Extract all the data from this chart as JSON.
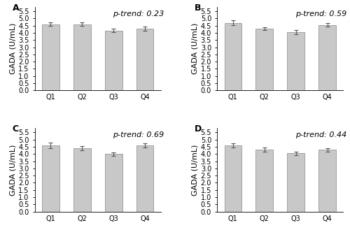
{
  "panels": [
    {
      "label": "A",
      "p_trend": "p-trend: 0.23",
      "categories": [
        "Q1",
        "Q2",
        "Q3",
        "Q4"
      ],
      "values": [
        4.6,
        4.6,
        4.15,
        4.3
      ],
      "errors": [
        0.12,
        0.12,
        0.12,
        0.15
      ]
    },
    {
      "label": "B",
      "p_trend": "p-trend: 0.59",
      "categories": [
        "Q1",
        "Q2",
        "Q3",
        "Q4"
      ],
      "values": [
        4.7,
        4.3,
        4.05,
        4.55
      ],
      "errors": [
        0.15,
        0.1,
        0.13,
        0.12
      ]
    },
    {
      "label": "C",
      "p_trend": "p-trend: 0.69",
      "categories": [
        "Q1",
        "Q2",
        "Q3",
        "Q4"
      ],
      "values": [
        4.6,
        4.4,
        4.0,
        4.6
      ],
      "errors": [
        0.18,
        0.15,
        0.12,
        0.15
      ]
    },
    {
      "label": "D",
      "p_trend": "p-trend: 0.44",
      "categories": [
        "Q1",
        "Q2",
        "Q3",
        "Q4"
      ],
      "values": [
        4.6,
        4.3,
        4.05,
        4.3
      ],
      "errors": [
        0.15,
        0.13,
        0.12,
        0.12
      ]
    }
  ],
  "bar_color": "#c8c8c8",
  "bar_edgecolor": "#888888",
  "error_color": "#555555",
  "ylabel": "GADA (U/mL)",
  "ylim": [
    0.0,
    5.8
  ],
  "yticks": [
    0.0,
    0.5,
    1.0,
    1.5,
    2.0,
    2.5,
    3.0,
    3.5,
    4.0,
    4.5,
    5.0,
    5.5
  ],
  "bar_width": 0.55,
  "label_fontsize": 9,
  "ptrend_fontsize": 8,
  "tick_fontsize": 7,
  "ylabel_fontsize": 8
}
